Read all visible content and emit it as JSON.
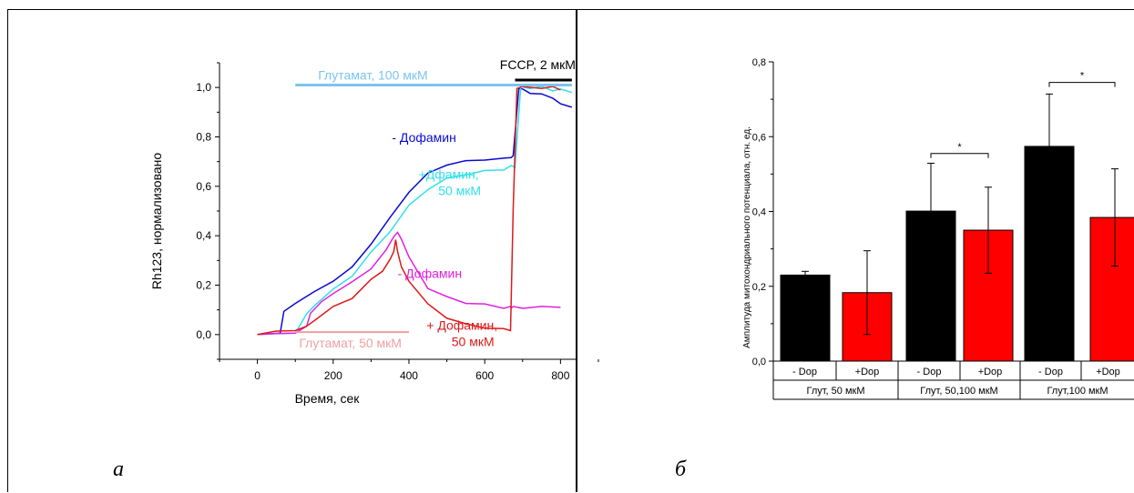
{
  "colors": {
    "blue": "#0a0ad0",
    "cyan": "#30e0e8",
    "magenta": "#e020e0",
    "red": "#dd1a1a",
    "lightblue": "#7cc4f0",
    "pink": "#f0a0a0",
    "black": "#000000",
    "barred": "#ff0000"
  },
  "chart_data": [
    {
      "type": "line",
      "panel_letter": "а",
      "xlabel": "Время, сек",
      "ylabel": "Rh123, нормализовано",
      "xlim": [
        -100,
        840
      ],
      "ylim": [
        -0.1,
        1.1
      ],
      "xticks": [
        0,
        200,
        400,
        600,
        800
      ],
      "yticks": [
        0,
        0.2,
        0.4,
        0.6,
        0.8,
        1.0
      ],
      "ytick_labels": [
        "0,0",
        "0,2",
        "0,4",
        "0,6",
        "0,8",
        "1,0"
      ],
      "grid": false,
      "series": [
        {
          "name": "- Дофамин",
          "color": "#0a0ad0",
          "x": [
            0,
            40,
            60,
            70,
            100,
            150,
            200,
            250,
            300,
            350,
            400,
            450,
            500,
            550,
            600,
            650,
            670,
            675,
            690,
            700,
            720,
            750,
            780,
            800,
            830
          ],
          "y": [
            0.0,
            0.0,
            0.01,
            0.09,
            0.13,
            0.17,
            0.22,
            0.27,
            0.37,
            0.47,
            0.58,
            0.65,
            0.69,
            0.7,
            0.71,
            0.71,
            0.72,
            0.72,
            1.0,
            0.99,
            0.98,
            0.97,
            0.96,
            0.93,
            0.92
          ]
        },
        {
          "name": "+Дфамин, 50 мкМ",
          "color": "#30e0e8",
          "x": [
            0,
            50,
            100,
            130,
            150,
            200,
            250,
            300,
            350,
            400,
            450,
            500,
            550,
            600,
            650,
            670,
            680,
            695,
            720,
            750,
            780,
            800,
            830
          ],
          "y": [
            0.0,
            0.0,
            0.01,
            0.08,
            0.12,
            0.18,
            0.24,
            0.33,
            0.42,
            0.52,
            0.59,
            0.63,
            0.65,
            0.66,
            0.67,
            0.68,
            0.68,
            1.0,
            1.0,
            1.0,
            0.99,
            0.99,
            0.98
          ]
        },
        {
          "name": "- Дофамин",
          "color": "#e020e0",
          "x": [
            0,
            50,
            100,
            130,
            140,
            170,
            200,
            250,
            300,
            340,
            360,
            370,
            380,
            400,
            450,
            500,
            550,
            600,
            650,
            668,
            670,
            675,
            700,
            750,
            800
          ],
          "y": [
            0.0,
            0.0,
            0.01,
            0.03,
            0.09,
            0.13,
            0.17,
            0.21,
            0.27,
            0.34,
            0.4,
            0.41,
            0.39,
            0.31,
            0.19,
            0.15,
            0.13,
            0.12,
            0.11,
            0.11,
            0.11,
            0.11,
            0.11,
            0.11,
            0.11
          ]
        },
        {
          "name": "+ Дофамин, 50 мкМ",
          "color": "#dd1a1a",
          "x": [
            0,
            50,
            100,
            130,
            150,
            200,
            250,
            300,
            330,
            350,
            360,
            365,
            370,
            380,
            400,
            450,
            500,
            550,
            600,
            650,
            668,
            675,
            685,
            700,
            750,
            780,
            800
          ],
          "y": [
            0.0,
            0.01,
            0.02,
            0.03,
            0.06,
            0.11,
            0.15,
            0.22,
            0.26,
            0.3,
            0.34,
            0.38,
            0.34,
            0.27,
            0.22,
            0.12,
            0.07,
            0.04,
            0.03,
            0.02,
            0.02,
            0.5,
            1.0,
            1.0,
            1.0,
            1.0,
            0.99
          ]
        }
      ],
      "annotations": [
        {
          "text": "Глутамат, 100 мкМ",
          "color": "#7cc4f0",
          "bar_x": [
            100,
            830
          ],
          "bar_y": 1.01
        },
        {
          "text": "FCCP, 2 мкМ",
          "color": "#000000",
          "bar_x": [
            680,
            830
          ],
          "bar_y": 1.03
        },
        {
          "text": "Глутамат, 50 мкМ",
          "color": "#f0a0a0",
          "bar_x": [
            100,
            400
          ],
          "bar_y": 0.01
        }
      ],
      "series_labels": [
        {
          "lines": [
            "- Дофамин"
          ],
          "color": "#0a0ad0"
        },
        {
          "lines": [
            "+Дфамин,",
            "50 мкМ"
          ],
          "color": "#30e0e8"
        },
        {
          "lines": [
            "- Дофамин"
          ],
          "color": "#e020e0"
        },
        {
          "lines": [
            "+ Дофамин,",
            "50 мкМ"
          ],
          "color": "#dd1a1a"
        }
      ]
    },
    {
      "type": "bar",
      "panel_letter": "б",
      "ylabel": "Амплитуда митохондриального потенциала, отн. ед.",
      "ylim": [
        0,
        0.8
      ],
      "yticks": [
        0,
        0.2,
        0.4,
        0.6,
        0.8
      ],
      "ytick_labels": [
        "0,0",
        "0,2",
        "0,4",
        "0,6",
        "0,8"
      ],
      "categories": [
        "- Dop",
        "+Dop",
        "- Dop",
        "+Dop",
        "- Dop",
        "+Dop"
      ],
      "values": [
        0.23,
        0.183,
        0.401,
        0.35,
        0.574,
        0.384
      ],
      "errors": [
        0.01,
        0.112,
        0.128,
        0.115,
        0.14,
        0.13
      ],
      "bar_colors": [
        "#000000",
        "#ff0000",
        "#000000",
        "#ff0000",
        "#000000",
        "#ff0000"
      ],
      "groups": [
        "Глут, 50 мкМ",
        "Глут, 50,100 мкМ",
        "Глут,100 мкМ"
      ],
      "significance": [
        {
          "pair": [
            2,
            3
          ],
          "label": "*",
          "y": 0.555
        },
        {
          "pair": [
            4,
            5
          ],
          "label": "*",
          "y": 0.745
        }
      ]
    }
  ]
}
